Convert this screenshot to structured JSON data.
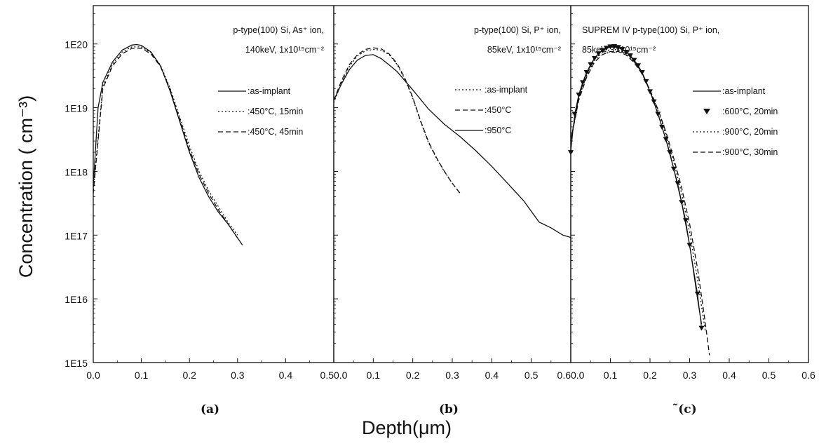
{
  "figure": {
    "ylabel": "Concentration ( cm⁻³)",
    "xlabel": "Depth(μm)"
  },
  "chart_data": [
    {
      "type": "line",
      "panel_label": "(a)",
      "annotation": [
        "p-type(100) Si, As⁺ ion,",
        "140keV,  1x10¹⁵cm⁻²"
      ],
      "xlim": [
        0.0,
        0.5
      ],
      "ylim": [
        1000000000000000.0,
        4e+20
      ],
      "yscale": "log",
      "x_ticks": [
        "0.0",
        "0.1",
        "0.2",
        "0.3",
        "0.4",
        "0.5"
      ],
      "y_ticks": [
        "1E15",
        "1E16",
        "1E17",
        "1E18",
        "1E19",
        "1E20"
      ],
      "legend_position": "right",
      "series": [
        {
          "name": ":as-implant",
          "style": "solid",
          "x": [
            0.0,
            0.01,
            0.02,
            0.04,
            0.06,
            0.08,
            0.09,
            0.1,
            0.12,
            0.14,
            0.16,
            0.18,
            0.2,
            0.22,
            0.24,
            0.26,
            0.28,
            0.3,
            0.31
          ],
          "y": [
            6e+17,
            1e+19,
            2.5e+19,
            5.2e+19,
            8e+19,
            9.6e+19,
            9.8e+19,
            9.5e+19,
            7.5e+19,
            4.5e+19,
            1.8e+19,
            6e+18,
            2e+18,
            8e+17,
            4e+17,
            2.3e+17,
            1.5e+17,
            9e+16,
            7e+16
          ]
        },
        {
          "name": ":450°C, 15min",
          "style": "dotted",
          "x": [
            0.0,
            0.02,
            0.04,
            0.06,
            0.08,
            0.1,
            0.12,
            0.14,
            0.16,
            0.18,
            0.2,
            0.22,
            0.24,
            0.26,
            0.28,
            0.3
          ],
          "y": [
            5e+17,
            2.2e+19,
            4.8e+19,
            7.5e+19,
            9e+19,
            9e+19,
            7.3e+19,
            4.6e+19,
            2e+19,
            7e+18,
            2.5e+18,
            1e+18,
            5e+17,
            2.8e+17,
            1.6e+17,
            1e+17
          ]
        },
        {
          "name": ":450°C, 45min",
          "style": "dashed",
          "x": [
            0.0,
            0.02,
            0.04,
            0.06,
            0.08,
            0.1,
            0.12,
            0.14,
            0.16,
            0.18,
            0.2,
            0.22,
            0.24,
            0.26,
            0.28,
            0.3
          ],
          "y": [
            4.5e+17,
            2e+19,
            4.5e+19,
            7e+19,
            8.5e+19,
            8.6e+19,
            7e+19,
            4.4e+19,
            1.9e+19,
            6.5e+18,
            2.2e+18,
            9e+17,
            4.5e+17,
            2.5e+17,
            1.5e+17,
            9e+16
          ]
        }
      ]
    },
    {
      "type": "line",
      "panel_label": "(b)",
      "annotation": [
        "p-type(100) Si,  P⁺ ion,",
        "85keV,  1x10¹⁵cm⁻²"
      ],
      "xlim": [
        0.0,
        0.6
      ],
      "ylim": [
        1000000000000000.0,
        4e+20
      ],
      "yscale": "log",
      "x_ticks": [
        "0.0",
        "0.1",
        "0.2",
        "0.3",
        "0.4",
        "0.5",
        "0.6"
      ],
      "legend_position": "right",
      "series": [
        {
          "name": ":as-implant",
          "style": "dotted",
          "x": [
            0.0,
            0.02,
            0.04,
            0.06,
            0.08,
            0.1,
            0.12,
            0.14,
            0.16,
            0.18,
            0.2,
            0.22,
            0.24,
            0.26,
            0.28,
            0.3,
            0.32
          ],
          "y": [
            1.2e+19,
            2.5e+19,
            4.5e+19,
            6.5e+19,
            7.8e+19,
            8.2e+19,
            8e+19,
            6.8e+19,
            4.8e+19,
            2.8e+19,
            1.4e+19,
            6e+18,
            2.8e+18,
            1.6e+18,
            1e+18,
            6.5e+17,
            4.5e+17
          ]
        },
        {
          "name": ":450°C",
          "style": "dashed",
          "x": [
            0.0,
            0.02,
            0.04,
            0.06,
            0.08,
            0.1,
            0.12,
            0.14,
            0.16,
            0.18,
            0.2,
            0.22,
            0.24,
            0.26,
            0.28,
            0.3,
            0.32
          ],
          "y": [
            1.3e+19,
            2.7e+19,
            4.8e+19,
            6.8e+19,
            8.2e+19,
            8.7e+19,
            8.4e+19,
            7e+19,
            5e+19,
            2.9e+19,
            1.45e+19,
            6.2e+18,
            2.9e+18,
            1.65e+18,
            1e+18,
            6.5e+17,
            4.5e+17
          ]
        },
        {
          "name": ":950°C",
          "style": "solid",
          "x": [
            0.0,
            0.02,
            0.04,
            0.06,
            0.08,
            0.1,
            0.12,
            0.14,
            0.16,
            0.2,
            0.24,
            0.28,
            0.32,
            0.36,
            0.4,
            0.44,
            0.48,
            0.52,
            0.55,
            0.58,
            0.6
          ],
          "y": [
            1.3e+19,
            2.4e+19,
            4e+19,
            5.6e+19,
            6.6e+19,
            6.8e+19,
            5.9e+19,
            4.7e+19,
            3.7e+19,
            1.9e+19,
            9.5e+18,
            5.5e+18,
            3.5e+18,
            2.1e+18,
            1.2e+18,
            6.5e+17,
            3.5e+17,
            1.6e+17,
            1.3e+17,
            1e+17,
            9.2e+16
          ]
        }
      ]
    },
    {
      "type": "line",
      "panel_label": "̃(c)",
      "annotation": [
        "SUPREM    IV  p-type(100) Si,  P⁺ ion,",
        "85keV,  1x10¹⁵cm⁻²"
      ],
      "xlim": [
        0.0,
        0.6
      ],
      "ylim": [
        1000000000000000.0,
        4e+20
      ],
      "yscale": "log",
      "x_ticks": [
        "0.0",
        "0.1",
        "0.2",
        "0.3",
        "0.4",
        "0.5",
        "0.6"
      ],
      "legend_position": "right",
      "series": [
        {
          "name": ":as-implant",
          "style": "solid",
          "x": [
            0.0,
            0.02,
            0.04,
            0.06,
            0.08,
            0.1,
            0.12,
            0.14,
            0.16,
            0.18,
            0.2,
            0.22,
            0.24,
            0.26,
            0.28,
            0.3,
            0.32,
            0.33
          ],
          "y": [
            3e+18,
            1.5e+19,
            3.5e+19,
            6e+19,
            8e+19,
            9e+19,
            8.8e+19,
            7.5e+19,
            5.5e+19,
            3.5e+19,
            1.8e+19,
            8e+18,
            3.2e+18,
            1.1e+18,
            3.2e+17,
            7e+16,
            1e+16,
            4000000000000000.0
          ]
        },
        {
          "name": ":600°C, 20min",
          "style": "marker-triangle-down",
          "x": [
            0.0,
            0.01,
            0.02,
            0.03,
            0.04,
            0.05,
            0.06,
            0.07,
            0.08,
            0.09,
            0.1,
            0.11,
            0.12,
            0.13,
            0.14,
            0.15,
            0.16,
            0.17,
            0.18,
            0.19,
            0.2,
            0.21,
            0.22,
            0.23,
            0.24,
            0.25,
            0.26,
            0.27,
            0.28,
            0.29,
            0.3,
            0.32,
            0.33
          ],
          "y": [
            2e+18,
            8e+18,
            1.6e+19,
            2.5e+19,
            3.6e+19,
            4.8e+19,
            6e+19,
            7.1e+19,
            8e+19,
            8.7e+19,
            9.1e+19,
            9.2e+19,
            8.9e+19,
            8.3e+19,
            7.5e+19,
            6.6e+19,
            5.6e+19,
            4.6e+19,
            3.6e+19,
            2.6e+19,
            1.8e+19,
            1.25e+19,
            8e+18,
            5e+18,
            3.2e+18,
            2e+18,
            1.1e+18,
            6.5e+17,
            3.3e+17,
            1.7e+17,
            7e+16,
            1.2e+16,
            3500000000000000.0
          ]
        },
        {
          "name": ":900°C, 20min",
          "style": "dotted",
          "x": [
            0.0,
            0.02,
            0.04,
            0.06,
            0.08,
            0.1,
            0.12,
            0.14,
            0.16,
            0.18,
            0.2,
            0.22,
            0.24,
            0.26,
            0.28,
            0.3,
            0.32,
            0.34
          ],
          "y": [
            3e+18,
            1.4e+19,
            3.2e+19,
            5.5e+19,
            7.3e+19,
            8.2e+19,
            8.1e+19,
            7e+19,
            5.3e+19,
            3.5e+19,
            1.9e+19,
            9e+18,
            3.8e+18,
            1.4e+18,
            4.5e+17,
            1.1e+17,
            2e+16,
            3000000000000000.0
          ]
        },
        {
          "name": ":900°C, 30min",
          "style": "dashed",
          "x": [
            0.0,
            0.02,
            0.04,
            0.06,
            0.08,
            0.1,
            0.12,
            0.14,
            0.16,
            0.18,
            0.2,
            0.22,
            0.24,
            0.26,
            0.28,
            0.3,
            0.32,
            0.34,
            0.35
          ],
          "y": [
            3e+18,
            1.3e+19,
            3e+19,
            5.2e+19,
            6.8e+19,
            7.6e+19,
            7.6e+19,
            6.7e+19,
            5.1e+19,
            3.4e+19,
            1.9e+19,
            9.5e+18,
            4.2e+18,
            1.6e+18,
            5.5e+17,
            1.5e+17,
            3e+16,
            4000000000000000.0,
            1300000000000000.0
          ]
        }
      ]
    }
  ]
}
